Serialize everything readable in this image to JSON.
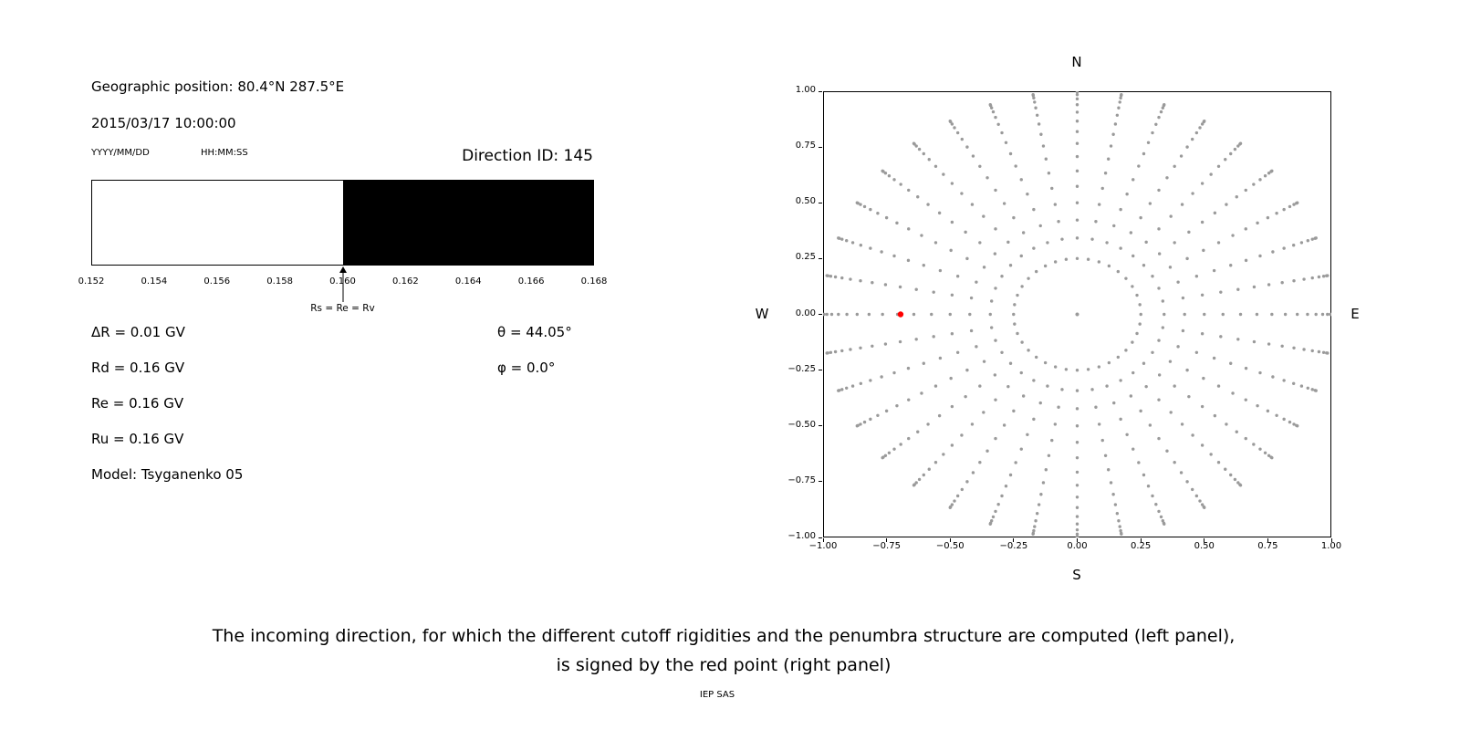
{
  "header": {
    "geographic_position": "Geographic position: 80.4°N 287.5°E",
    "datetime": "2015/03/17 10:00:00",
    "date_format_label": "YYYY/MM/DD",
    "time_format_label": "HH:MM:SS",
    "direction_id": "Direction ID: 145"
  },
  "parameters": {
    "delta_r": "ΔR = 0.01 GV",
    "rd": "Rd = 0.16 GV",
    "re": "Re = 0.16 GV",
    "ru": "Ru = 0.16 GV",
    "model": "Model: Tsyganenko 05",
    "theta": "θ = 44.05°",
    "phi": "φ = 0.0°"
  },
  "caption": {
    "line1": "The incoming direction, for which the different cutoff rigidities and the penumbra structure are computed (left panel),",
    "line2": "is signed by the red point (right panel)",
    "credit": "IEP SAS"
  },
  "colors": {
    "allowed": "#ffffff",
    "forbidden": "#000000",
    "grid_dots": "#9a9a9a",
    "selected_dot": "#ff0000",
    "axis": "#000000"
  },
  "chart_data": [
    {
      "id": "penumbra-strip",
      "type": "area",
      "title": "Direction ID: 145",
      "xlabel": "",
      "ylabel": "",
      "xlim": [
        0.152,
        0.168
      ],
      "x_ticks": [
        0.152,
        0.154,
        0.156,
        0.158,
        0.16,
        0.162,
        0.164,
        0.166,
        0.168
      ],
      "x_tick_labels": [
        "0.152",
        "0.154",
        "0.156",
        "0.158",
        "0.160",
        "0.162",
        "0.164",
        "0.166",
        "0.168"
      ],
      "segments": [
        {
          "from": 0.152,
          "to": 0.16,
          "state": "allowed",
          "color": "#ffffff"
        },
        {
          "from": 0.16,
          "to": 0.168,
          "state": "forbidden",
          "color": "#000000"
        }
      ],
      "annotation": {
        "x": 0.16,
        "label": "Rs = Re = Rv"
      }
    },
    {
      "id": "sky-map",
      "type": "scatter",
      "title": "",
      "xlabel": "S",
      "ylabel": "",
      "xlim": [
        -1,
        1
      ],
      "ylim": [
        -1,
        1
      ],
      "grid": false,
      "x_tick_labels": [
        "−1.00",
        "−0.75",
        "−0.50",
        "−0.25",
        "0.00",
        "0.25",
        "0.50",
        "0.75",
        "1.00"
      ],
      "y_tick_labels": [
        "1.00",
        "0.75",
        "0.50",
        "0.25",
        "0.00",
        "−0.25",
        "−0.50",
        "−0.75",
        "−1.00"
      ],
      "compass": {
        "top": "N",
        "bottom": "S",
        "left": "W",
        "right": "E"
      },
      "series": [
        {
          "name": "direction-grid",
          "color": "#9a9a9a",
          "marker_radius": 1.7,
          "generator": {
            "azimuth_start_deg": 0,
            "azimuth_step_deg": 10,
            "azimuth_count": 36,
            "zenith_deg": [
              0,
              14.5,
              20,
              25,
              30,
              35,
              40,
              45,
              50,
              55,
              60,
              65,
              70,
              75,
              80,
              85,
              90
            ],
            "radius_rule": "sin(zenith)"
          }
        },
        {
          "name": "selected-direction",
          "color": "#ff0000",
          "marker_radius": 3.2,
          "points": [
            [
              -0.695,
              0.0
            ]
          ]
        }
      ]
    }
  ]
}
